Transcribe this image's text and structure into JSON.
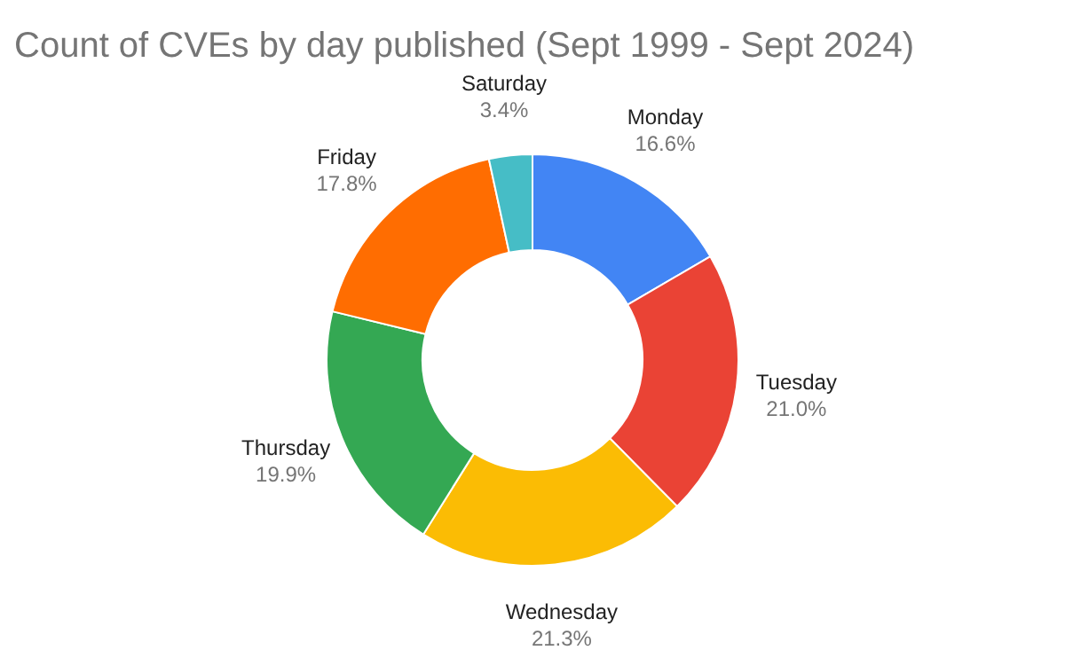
{
  "chart_data": {
    "type": "donut",
    "title": "Count of CVEs by day published (Sept 1999 - Sept 2024)",
    "categories": [
      "Monday",
      "Tuesday",
      "Wednesday",
      "Thursday",
      "Friday",
      "Saturday"
    ],
    "values": [
      16.6,
      21.0,
      21.3,
      19.9,
      17.8,
      3.4
    ],
    "value_labels": [
      "16.6%",
      "21.0%",
      "21.3%",
      "19.9%",
      "17.8%",
      "3.4%"
    ],
    "colors": [
      "#4285f4",
      "#ea4335",
      "#fbbc04",
      "#34a853",
      "#ff6d01",
      "#46bdc6"
    ],
    "legend": false
  }
}
